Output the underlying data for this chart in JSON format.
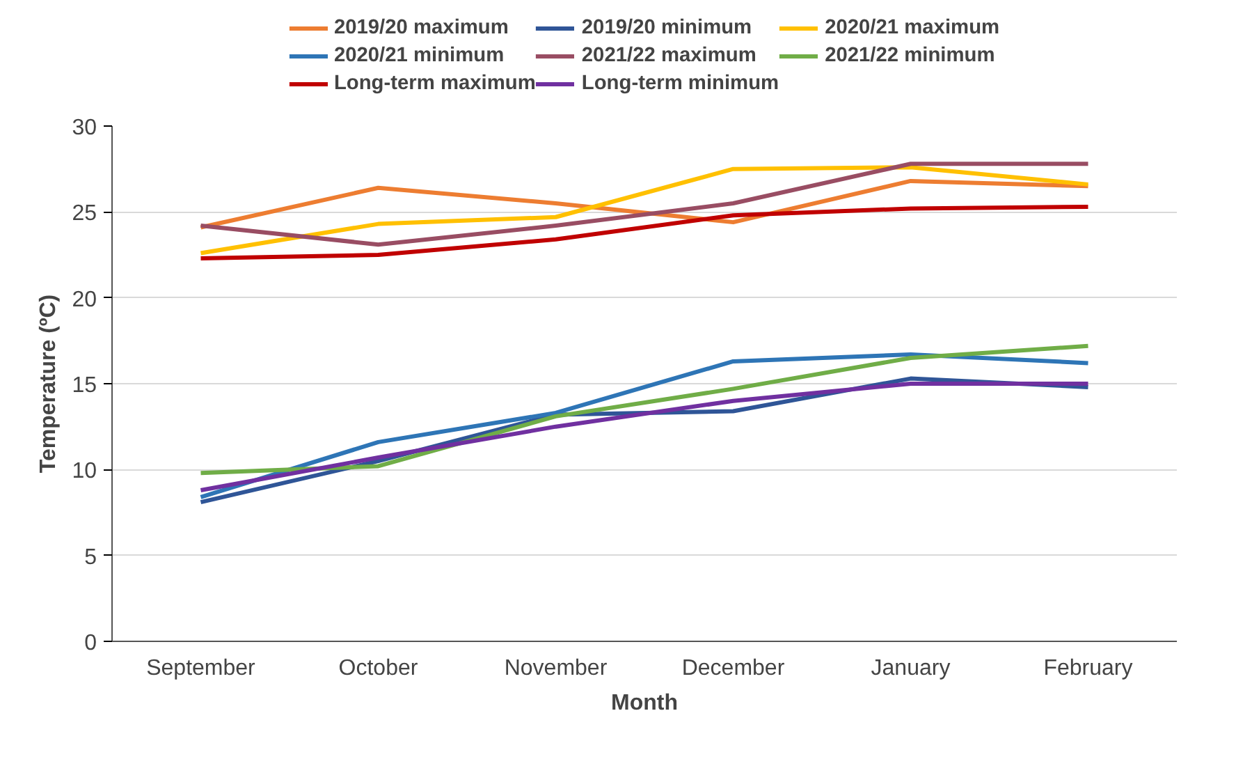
{
  "chart_data": {
    "type": "line",
    "xlabel": "Month",
    "ylabel": "Temperature (ºC)",
    "categories": [
      "September",
      "October",
      "November",
      "December",
      "January",
      "February"
    ],
    "series": [
      {
        "name": "2019/20 maximum",
        "color": "#ed7d31",
        "values": [
          24.1,
          26.4,
          25.5,
          24.4,
          26.8,
          26.5
        ]
      },
      {
        "name": "2019/20 minimum",
        "color": "#2f5597",
        "values": [
          8.1,
          10.5,
          13.2,
          13.4,
          15.3,
          14.8
        ]
      },
      {
        "name": "2020/21 maximum",
        "color": "#ffc000",
        "values": [
          22.6,
          24.3,
          24.7,
          27.5,
          27.6,
          26.6
        ]
      },
      {
        "name": "2020/21 minimum",
        "color": "#2e75b6",
        "values": [
          8.4,
          11.6,
          13.3,
          16.3,
          16.7,
          16.2
        ]
      },
      {
        "name": "2021/22 maximum",
        "color": "#994d63",
        "values": [
          24.2,
          23.1,
          24.2,
          25.5,
          27.8,
          27.8
        ]
      },
      {
        "name": "2021/22 minimum",
        "color": "#70ad47",
        "values": [
          9.8,
          10.2,
          13.1,
          14.7,
          16.5,
          17.2
        ]
      },
      {
        "name": "Long-term maximum",
        "color": "#c00000",
        "values": [
          22.3,
          22.5,
          23.4,
          24.8,
          25.2,
          25.3
        ]
      },
      {
        "name": "Long-term minimum",
        "color": "#7030a0",
        "values": [
          8.8,
          10.7,
          12.5,
          14.0,
          15.0,
          15.0
        ]
      }
    ],
    "ylim": [
      0,
      30
    ],
    "yticks": [
      0,
      5,
      10,
      15,
      20,
      25,
      30
    ],
    "grid": "y",
    "legend": "top",
    "marker": "none",
    "line_style": "solid"
  }
}
